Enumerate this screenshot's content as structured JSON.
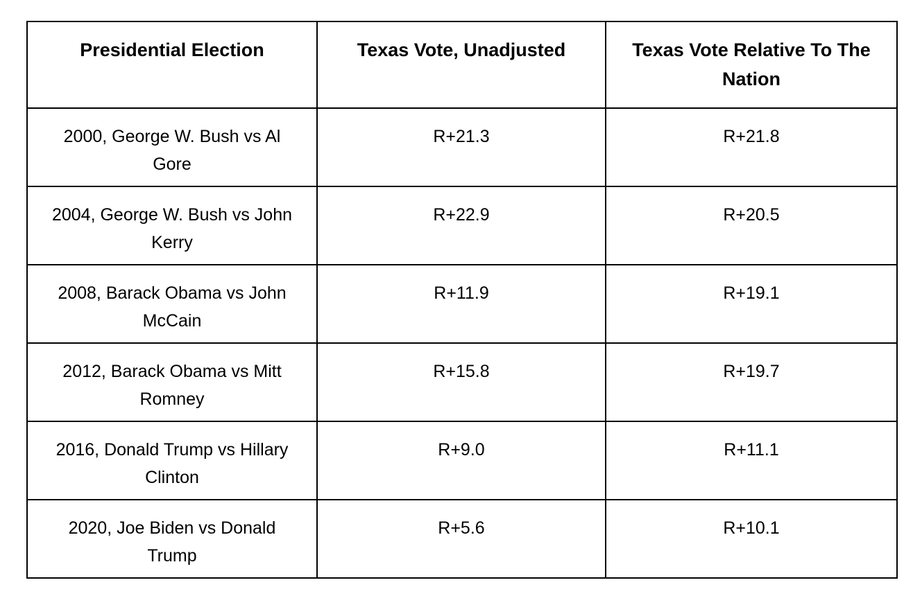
{
  "table": {
    "columns": [
      "Presidential Election",
      "Texas Vote, Unadjusted",
      "Texas Vote Relative To The Nation"
    ],
    "rows": [
      {
        "election": "2000, George W. Bush vs Al Gore",
        "unadjusted": "R+21.3",
        "relative": "R+21.8"
      },
      {
        "election": "2004, George W. Bush vs John Kerry",
        "unadjusted": "R+22.9",
        "relative": "R+20.5"
      },
      {
        "election": "2008, Barack Obama vs John McCain",
        "unadjusted": "R+11.9",
        "relative": "R+19.1"
      },
      {
        "election": "2012, Barack Obama vs Mitt Romney",
        "unadjusted": "R+15.8",
        "relative": "R+19.7"
      },
      {
        "election": "2016, Donald Trump vs Hillary Clinton",
        "unadjusted": "R+9.0",
        "relative": "R+11.1"
      },
      {
        "election": "2020, Joe Biden vs Donald Trump",
        "unadjusted": "R+5.6",
        "relative": "R+10.1"
      }
    ]
  },
  "colors": {
    "border": "#000000",
    "text": "#000000",
    "background": "#ffffff"
  },
  "chart_data": {
    "type": "table",
    "title": "",
    "columns": [
      "Presidential Election",
      "Texas Vote, Unadjusted",
      "Texas Vote Relative To The Nation"
    ],
    "rows": [
      [
        "2000, George W. Bush vs Al Gore",
        "R+21.3",
        "R+21.8"
      ],
      [
        "2004, George W. Bush vs John Kerry",
        "R+22.9",
        "R+20.5"
      ],
      [
        "2008, Barack Obama vs John McCain",
        "R+11.9",
        "R+19.1"
      ],
      [
        "2012, Barack Obama vs Mitt Romney",
        "R+15.8",
        "R+19.7"
      ],
      [
        "2016, Donald Trump vs Hillary Clinton",
        "R+9.0",
        "R+11.1"
      ],
      [
        "2020, Joe Biden vs Donald Trump",
        "R+5.6",
        "R+10.1"
      ]
    ],
    "series": [
      {
        "name": "Texas Vote, Unadjusted",
        "values": [
          21.3,
          22.9,
          11.9,
          15.8,
          9.0,
          5.6
        ]
      },
      {
        "name": "Texas Vote Relative To The Nation",
        "values": [
          21.8,
          20.5,
          19.1,
          19.7,
          11.1,
          10.1
        ]
      }
    ],
    "categories": [
      "2000",
      "2004",
      "2008",
      "2012",
      "2016",
      "2020"
    ],
    "value_unit": "R+ margin (percentage points)"
  }
}
